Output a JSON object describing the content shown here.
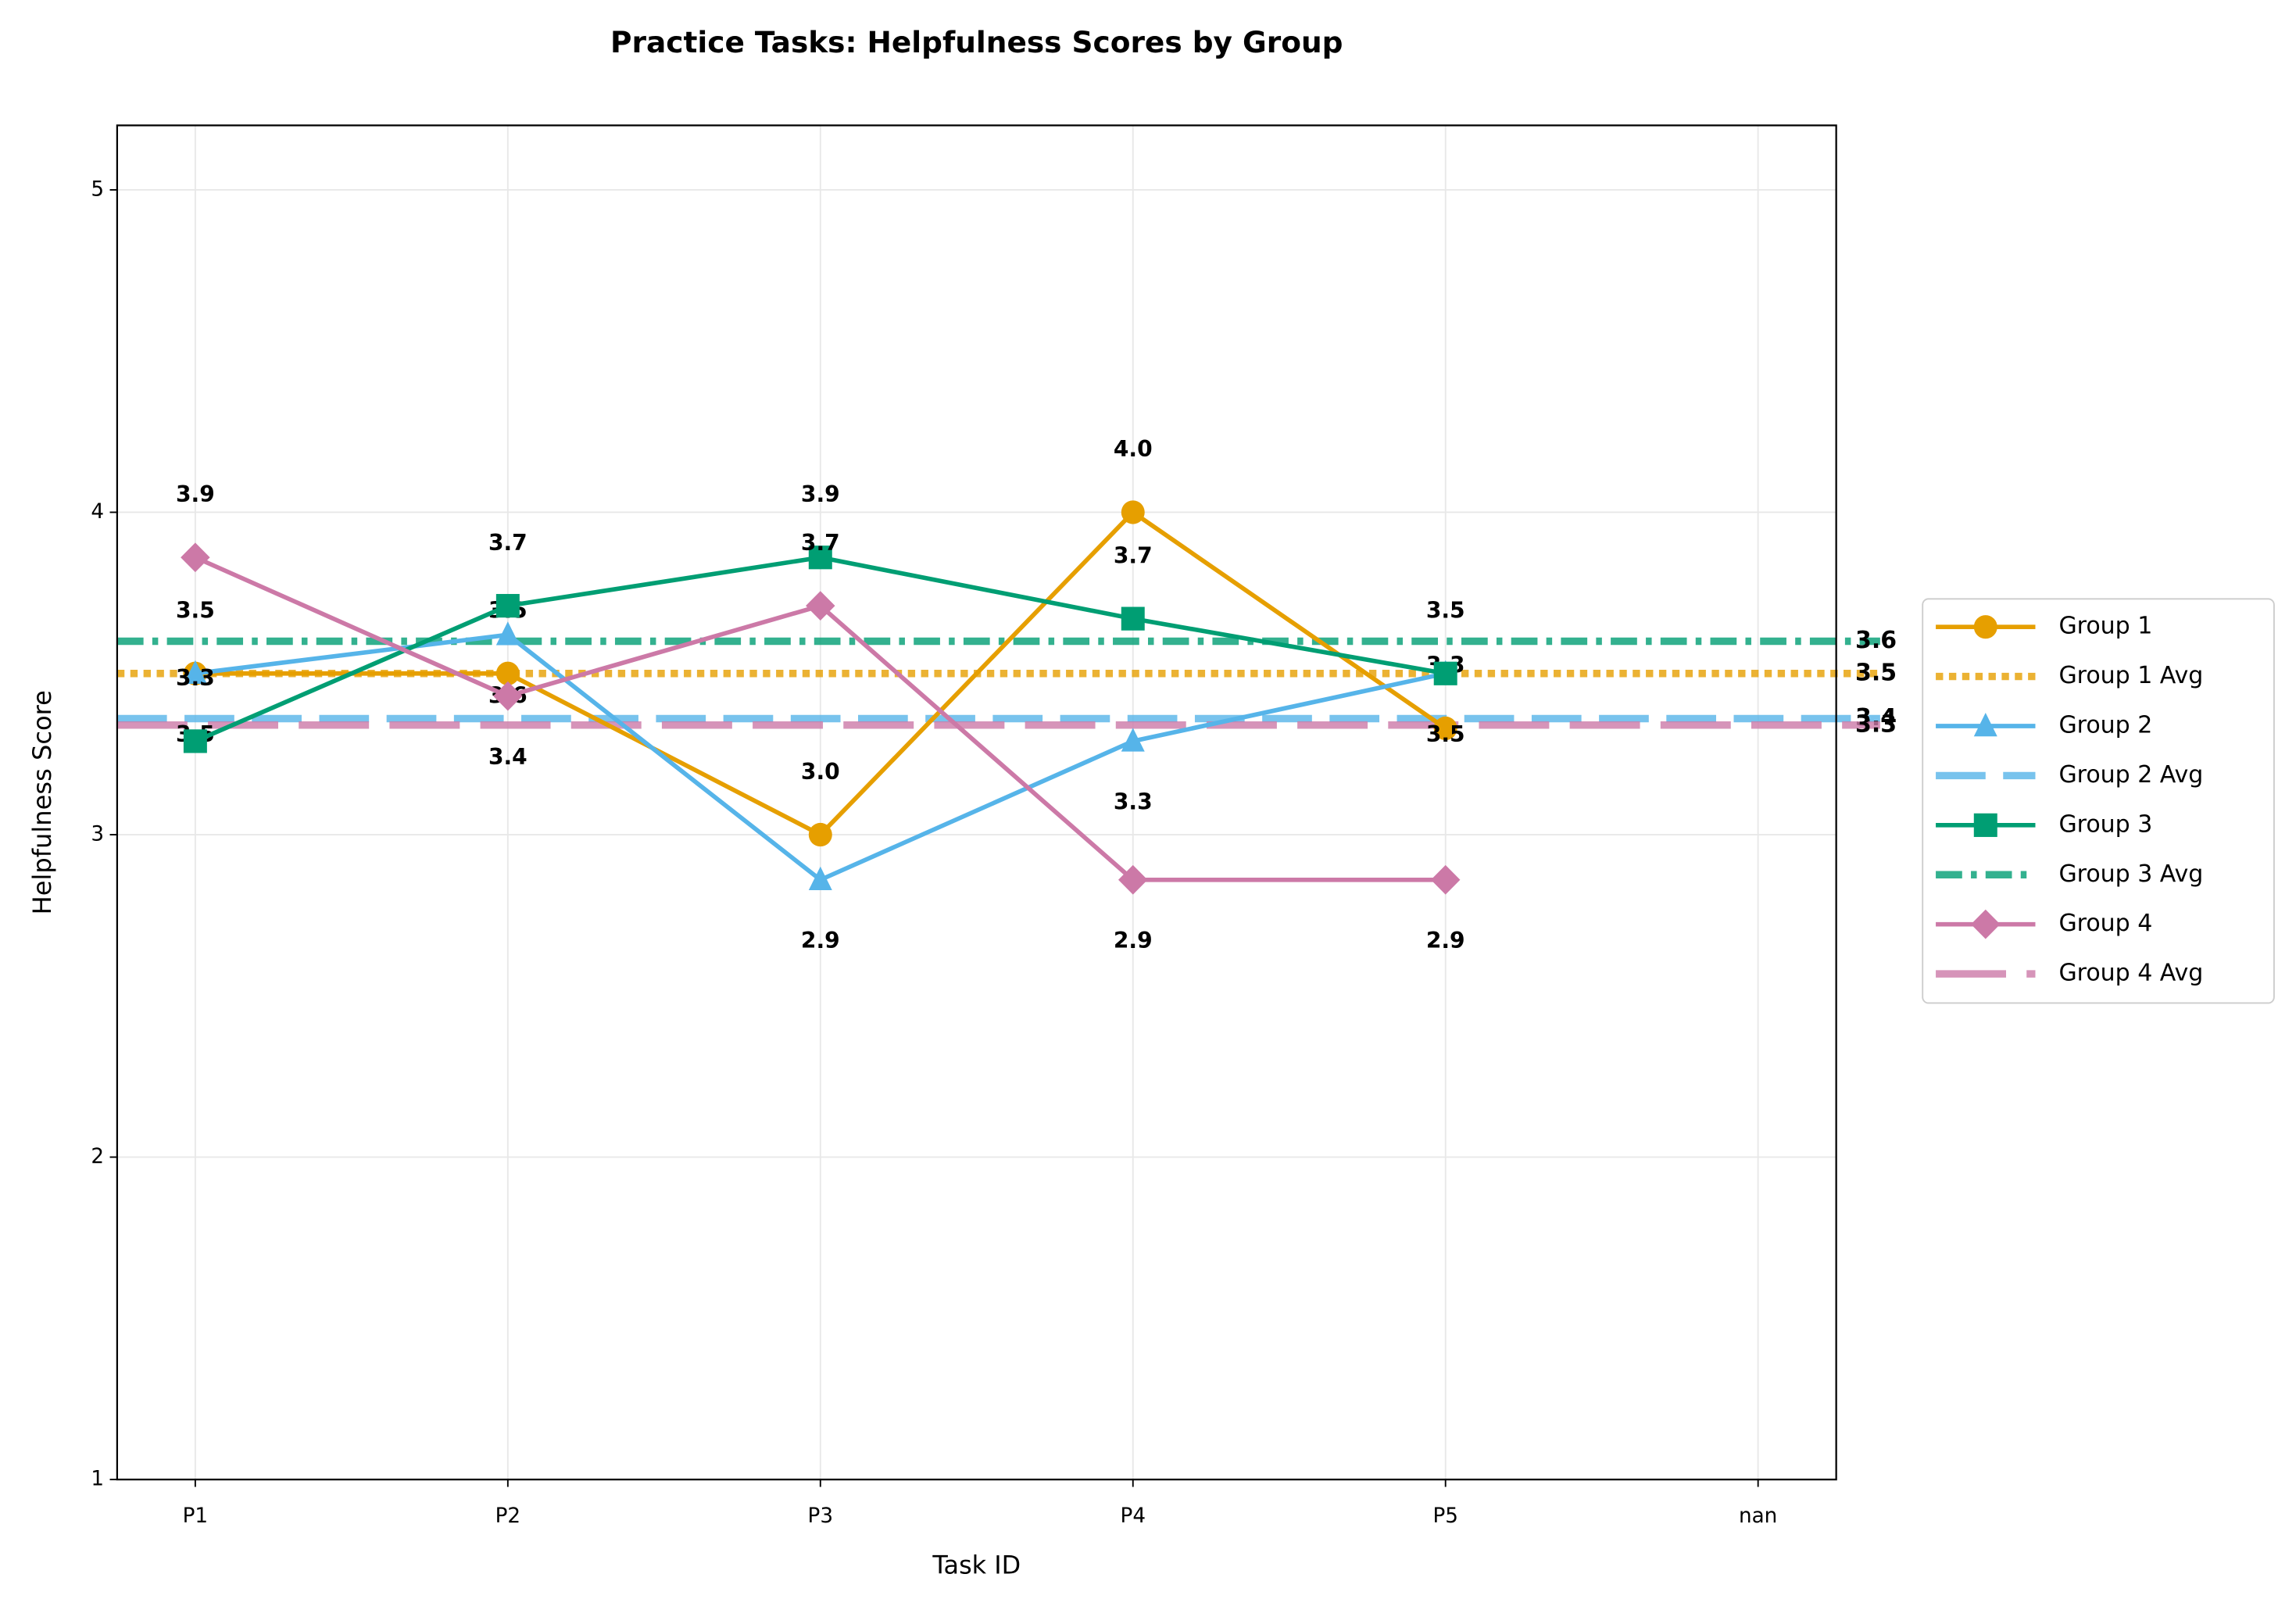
{
  "chart_data": {
    "type": "line",
    "title": "Practice Tasks: Helpfulness Scores by Group",
    "x_label": "Task ID",
    "y_label": "Helpfulness Score",
    "categories": [
      "P1",
      "P2",
      "P3",
      "P4",
      "P5",
      "nan"
    ],
    "ylim": [
      1,
      5.2
    ],
    "yticks": [
      1,
      2,
      3,
      4,
      5
    ],
    "grid": true,
    "legend": "outside right",
    "series": [
      {
        "name": "Group 1",
        "color": "#E69F00",
        "marker": "circle",
        "values": [
          3.5,
          3.5,
          3.0,
          4.0,
          3.33,
          null
        ],
        "value_labels": [
          "3.5",
          "3.5",
          "3.0",
          "4.0",
          "3.3",
          null
        ]
      },
      {
        "name": "Group 2",
        "color": "#56B4E9",
        "marker": "triangle",
        "values": [
          3.5,
          3.62,
          2.86,
          3.29,
          3.5,
          null
        ],
        "value_labels": [
          "3.5",
          "3.6",
          "2.9",
          "3.3",
          "3.5",
          null
        ]
      },
      {
        "name": "Group 3",
        "color": "#009E73",
        "marker": "square",
        "values": [
          3.29,
          3.71,
          3.86,
          3.67,
          3.5,
          null
        ],
        "value_labels": [
          "3.3",
          "3.7",
          "3.9",
          "3.7",
          "3.5",
          null
        ]
      },
      {
        "name": "Group 4",
        "color": "#CC79A7",
        "marker": "diamond",
        "values": [
          3.86,
          3.43,
          3.71,
          2.86,
          2.86,
          null
        ],
        "value_labels": [
          "3.9",
          "3.4",
          "3.7",
          "2.9",
          "2.9",
          null
        ]
      }
    ],
    "averages": [
      {
        "name": "Group 1 Avg",
        "color": "#E69F00",
        "linestyle": "dotted",
        "value": 3.5,
        "value_label": "3.5"
      },
      {
        "name": "Group 2 Avg",
        "color": "#56B4E9",
        "linestyle": "dashed",
        "value": 3.36,
        "value_label": "3.4"
      },
      {
        "name": "Group 3 Avg",
        "color": "#009E73",
        "linestyle": "dashdot",
        "value": 3.6,
        "value_label": "3.6"
      },
      {
        "name": "Group 4 Avg",
        "color": "#CC79A7",
        "linestyle": "longdash",
        "value": 3.34,
        "value_label": "3.3"
      }
    ]
  }
}
